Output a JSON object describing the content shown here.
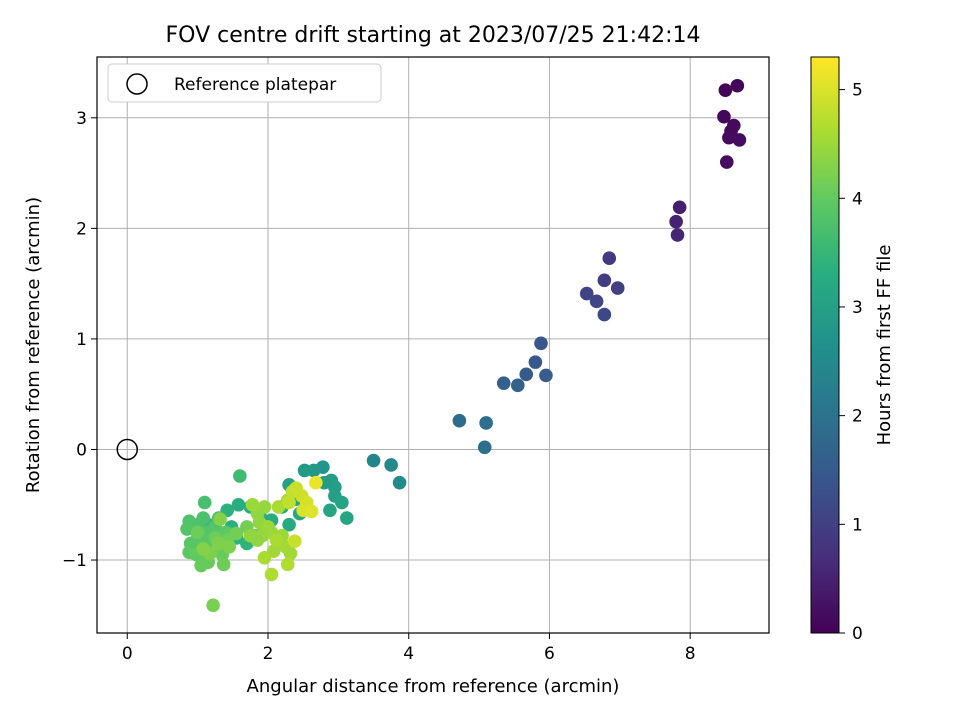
{
  "chart_data": {
    "type": "scatter",
    "title": "FOV centre drift starting at 2023/07/25 21:42:14",
    "xlabel": "Angular distance from reference (arcmin)",
    "ylabel": "Rotation from reference (arcmin)",
    "xlim": [
      -0.43,
      9.12
    ],
    "ylim": [
      -1.66,
      3.55
    ],
    "xticks": [
      0,
      2,
      4,
      6,
      8
    ],
    "yticks": [
      -1,
      0,
      1,
      2,
      3
    ],
    "grid": true,
    "legend": {
      "position": "top-left",
      "entries": [
        "Reference platepar"
      ]
    },
    "reference_point": {
      "x": 0,
      "y": 0
    },
    "colorbar": {
      "label": "Hours from first FF file",
      "range": [
        0,
        5.3
      ],
      "ticks": [
        0,
        1,
        2,
        3,
        4,
        5
      ],
      "colormap": "viridis"
    },
    "points": [
      [
        8.5,
        3.25,
        0.05
      ],
      [
        8.67,
        3.29,
        0.07
      ],
      [
        8.48,
        3.01,
        0.1
      ],
      [
        8.58,
        2.88,
        0.12
      ],
      [
        8.62,
        2.93,
        0.14
      ],
      [
        8.55,
        2.82,
        0.16
      ],
      [
        8.7,
        2.8,
        0.18
      ],
      [
        8.52,
        2.6,
        0.2
      ],
      [
        7.85,
        2.19,
        0.45
      ],
      [
        7.8,
        2.06,
        0.5
      ],
      [
        7.82,
        1.94,
        0.55
      ],
      [
        6.85,
        1.73,
        0.9
      ],
      [
        6.78,
        1.53,
        0.95
      ],
      [
        6.97,
        1.46,
        1.0
      ],
      [
        6.53,
        1.41,
        1.05
      ],
      [
        6.67,
        1.34,
        1.1
      ],
      [
        6.78,
        1.22,
        1.15
      ],
      [
        5.88,
        0.96,
        1.4
      ],
      [
        5.8,
        0.79,
        1.45
      ],
      [
        5.67,
        0.68,
        1.5
      ],
      [
        5.95,
        0.67,
        1.55
      ],
      [
        5.35,
        0.6,
        1.6
      ],
      [
        5.55,
        0.58,
        1.65
      ],
      [
        4.72,
        0.26,
        1.85
      ],
      [
        5.1,
        0.24,
        1.9
      ],
      [
        5.08,
        0.02,
        1.95
      ],
      [
        3.5,
        -0.1,
        2.4
      ],
      [
        3.75,
        -0.14,
        2.45
      ],
      [
        3.87,
        -0.3,
        2.5
      ],
      [
        2.78,
        -0.16,
        2.75
      ],
      [
        2.65,
        -0.19,
        2.8
      ],
      [
        2.52,
        -0.19,
        2.85
      ],
      [
        2.9,
        -0.28,
        2.9
      ],
      [
        2.95,
        -0.34,
        2.95
      ],
      [
        2.3,
        -0.32,
        3.0
      ],
      [
        2.8,
        -0.3,
        2.9
      ],
      [
        2.95,
        -0.42,
        3.0
      ],
      [
        3.05,
        -0.48,
        3.05
      ],
      [
        2.88,
        -0.55,
        3.1
      ],
      [
        3.12,
        -0.62,
        3.1
      ],
      [
        2.45,
        -0.58,
        3.15
      ],
      [
        2.4,
        -0.45,
        3.15
      ],
      [
        2.3,
        -0.68,
        3.2
      ],
      [
        2.2,
        -0.52,
        3.2
      ],
      [
        2.05,
        -0.64,
        3.25
      ],
      [
        1.9,
        -0.62,
        3.25
      ],
      [
        1.75,
        -0.52,
        3.3
      ],
      [
        1.58,
        -0.5,
        3.3
      ],
      [
        1.42,
        -0.55,
        3.35
      ],
      [
        1.48,
        -0.7,
        3.35
      ],
      [
        1.55,
        -0.8,
        3.4
      ],
      [
        1.7,
        -0.85,
        3.4
      ],
      [
        1.85,
        -0.78,
        3.45
      ],
      [
        1.38,
        -0.85,
        3.45
      ],
      [
        1.22,
        -0.75,
        3.5
      ],
      [
        1.15,
        -0.68,
        3.5
      ],
      [
        1.05,
        -0.82,
        3.55
      ],
      [
        1.6,
        -0.24,
        3.6
      ],
      [
        1.1,
        -0.48,
        3.7
      ],
      [
        1.3,
        -0.62,
        3.7
      ],
      [
        1.0,
        -0.68,
        3.75
      ],
      [
        1.08,
        -0.62,
        3.75
      ],
      [
        0.88,
        -0.65,
        3.8
      ],
      [
        0.95,
        -0.72,
        3.8
      ],
      [
        0.85,
        -0.72,
        3.85
      ],
      [
        1.0,
        -0.8,
        3.85
      ],
      [
        1.12,
        -0.75,
        3.85
      ],
      [
        1.25,
        -0.7,
        3.85
      ],
      [
        0.9,
        -0.85,
        3.9
      ],
      [
        1.05,
        -0.88,
        3.9
      ],
      [
        1.18,
        -0.82,
        3.9
      ],
      [
        1.28,
        -0.88,
        3.95
      ],
      [
        1.4,
        -0.75,
        3.95
      ],
      [
        0.88,
        -0.93,
        3.95
      ],
      [
        0.98,
        -0.95,
        4.0
      ],
      [
        1.1,
        -0.98,
        4.0
      ],
      [
        1.22,
        -0.92,
        4.0
      ],
      [
        1.35,
        -0.95,
        4.05
      ],
      [
        1.05,
        -1.05,
        4.05
      ],
      [
        1.15,
        -1.02,
        4.05
      ],
      [
        1.37,
        -1.04,
        4.1
      ],
      [
        1.0,
        -0.75,
        4.1
      ],
      [
        1.25,
        -0.8,
        4.1
      ],
      [
        1.42,
        -0.82,
        4.1
      ],
      [
        1.55,
        -0.76,
        4.15
      ],
      [
        1.7,
        -0.7,
        4.15
      ],
      [
        1.95,
        -0.72,
        4.2
      ],
      [
        1.82,
        -0.78,
        4.2
      ],
      [
        1.22,
        -1.41,
        4.2
      ],
      [
        1.3,
        -0.85,
        4.25
      ],
      [
        1.45,
        -0.88,
        4.25
      ],
      [
        1.18,
        -0.94,
        4.25
      ],
      [
        1.32,
        -0.63,
        4.3
      ],
      [
        1.08,
        -0.9,
        4.3
      ],
      [
        1.85,
        -0.58,
        4.4
      ],
      [
        1.95,
        -0.52,
        4.45
      ],
      [
        1.78,
        -0.5,
        4.5
      ],
      [
        1.88,
        -0.66,
        4.4
      ],
      [
        2.0,
        -0.7,
        4.5
      ],
      [
        1.92,
        -0.78,
        4.45
      ],
      [
        1.85,
        -0.82,
        4.4
      ],
      [
        2.05,
        -0.75,
        4.5
      ],
      [
        2.15,
        -0.8,
        4.55
      ],
      [
        2.25,
        -0.88,
        4.55
      ],
      [
        2.32,
        -0.94,
        4.55
      ],
      [
        2.2,
        -0.78,
        4.5
      ],
      [
        2.28,
        -0.46,
        4.6
      ],
      [
        1.95,
        -0.98,
        4.6
      ],
      [
        2.08,
        -0.92,
        4.55
      ],
      [
        2.05,
        -1.13,
        4.65
      ],
      [
        2.28,
        -1.04,
        4.65
      ],
      [
        2.12,
        -0.82,
        4.6
      ],
      [
        1.75,
        -0.78,
        4.4
      ],
      [
        2.15,
        -0.52,
        4.6
      ],
      [
        2.35,
        -0.38,
        4.8
      ],
      [
        2.4,
        -0.35,
        4.85
      ],
      [
        2.48,
        -0.42,
        4.9
      ],
      [
        2.55,
        -0.48,
        4.95
      ],
      [
        2.5,
        -0.55,
        5.0
      ],
      [
        2.62,
        -0.56,
        5.05
      ],
      [
        2.3,
        -0.48,
        4.8
      ],
      [
        2.68,
        -0.3,
        5.15
      ],
      [
        2.38,
        -0.83,
        4.85
      ]
    ]
  }
}
